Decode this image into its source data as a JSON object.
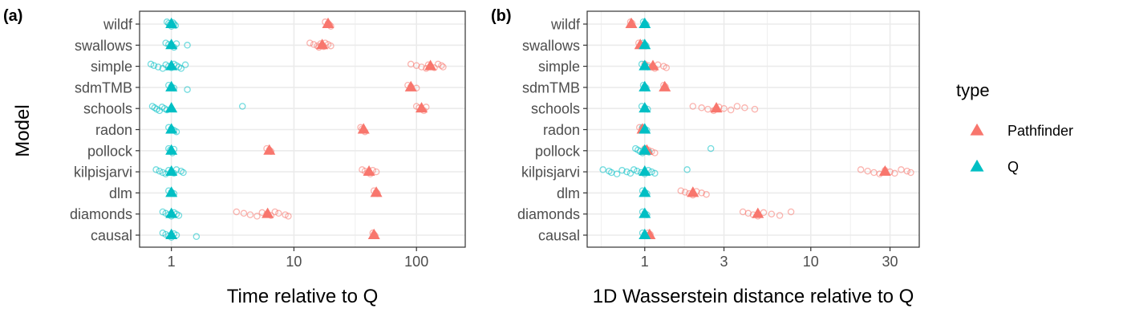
{
  "colors": {
    "Pathfinder": "#F8766D",
    "Q": "#00BFC4",
    "grid": "#ebebeb",
    "border": "#333333",
    "tick": "#4d4d4d"
  },
  "y_axis_title": "Model",
  "legend": {
    "title": "type",
    "entries": [
      "Pathfinder",
      "Q"
    ]
  },
  "chart_data": [
    {
      "type": "scatter",
      "panel_label": "(a)",
      "xlabel": "Time relative to Q",
      "ylabel": "Model",
      "x_scale": "log10",
      "xlim": [
        0.55,
        250
      ],
      "xticks": [
        1,
        10,
        100
      ],
      "xtick_labels": [
        "1",
        "10",
        "100"
      ],
      "xminor": [
        3.162,
        31.62
      ],
      "categories": [
        "wildf",
        "swallows",
        "simple",
        "sdmTMB",
        "schools",
        "radon",
        "pollock",
        "kilpisjarvi",
        "dlm",
        "diamonds",
        "causal"
      ],
      "series": [
        {
          "name": "Pathfinder",
          "means": [
            19,
            17,
            130,
            90,
            110,
            37,
            6.3,
            41,
            47,
            6.1,
            45
          ],
          "runs": [
            [
              18,
              19,
              19.5,
              20
            ],
            [
              13.5,
              14.5,
              15.5,
              16,
              16.5,
              17,
              17.5,
              18,
              19,
              20
            ],
            [
              90,
              100,
              110,
              120,
              125,
              130,
              140,
              150,
              160,
              165
            ],
            [
              85,
              90,
              100
            ],
            [
              100,
              105,
              110,
              115,
              120
            ],
            [
              35,
              36,
              37,
              38
            ],
            [
              6,
              6.3,
              6.5
            ],
            [
              36,
              38,
              40,
              42,
              44,
              47
            ],
            [
              45,
              47,
              48
            ],
            [
              3.4,
              3.9,
              4.4,
              5,
              5.5,
              6,
              6.5,
              7,
              7.5,
              8.5,
              9
            ],
            [
              44,
              45,
              46
            ]
          ]
        },
        {
          "name": "Q",
          "means": [
            1,
            1,
            1,
            1,
            1,
            1,
            1,
            1,
            1,
            1,
            1
          ],
          "runs": [
            [
              0.92,
              0.95,
              0.97,
              1.0,
              1.03,
              1.05,
              1.08
            ],
            [
              0.9,
              0.95,
              1.0,
              1.05,
              1.1,
              1.35
            ],
            [
              0.68,
              0.72,
              0.78,
              0.85,
              0.9,
              0.95,
              1.0,
              1.05,
              1.1,
              1.15,
              1.2,
              1.3
            ],
            [
              0.95,
              1.0,
              1.05,
              1.35
            ],
            [
              0.7,
              0.73,
              0.76,
              0.8,
              0.84,
              0.88,
              0.92,
              3.8
            ],
            [
              0.95,
              1.0,
              1.05,
              1.1
            ],
            [
              0.95,
              0.98,
              1.0,
              1.02,
              1.05
            ],
            [
              0.75,
              0.8,
              0.85,
              0.9,
              0.95,
              1.0,
              1.05,
              1.1,
              1.2,
              1.25
            ],
            [
              0.95,
              1.0,
              1.05
            ],
            [
              0.85,
              0.9,
              0.95,
              1.0,
              1.05,
              1.1,
              1.15
            ],
            [
              0.85,
              0.9,
              0.95,
              1.0,
              1.05,
              1.1,
              1.6
            ]
          ]
        }
      ]
    },
    {
      "type": "scatter",
      "panel_label": "(b)",
      "xlabel": "1D Wasserstein distance relative to Q",
      "ylabel": "Model",
      "x_scale": "log10",
      "xlim": [
        0.45,
        45
      ],
      "xticks": [
        1,
        3,
        10,
        30
      ],
      "xtick_labels": [
        "1",
        "3",
        "10",
        "30"
      ],
      "xminor": [
        0.5477,
        1.732,
        5.477,
        17.32
      ],
      "categories": [
        "wildf",
        "swallows",
        "simple",
        "sdmTMB",
        "schools",
        "radon",
        "pollock",
        "kilpisjarvi",
        "dlm",
        "diamonds",
        "causal"
      ],
      "series": [
        {
          "name": "Pathfinder",
          "means": [
            0.83,
            0.94,
            1.12,
            1.32,
            2.7,
            0.97,
            1.03,
            28,
            1.95,
            4.8,
            1.07
          ],
          "runs": [
            [
              0.82,
              0.84
            ],
            [
              0.92,
              0.95
            ],
            [
              1.0,
              1.05,
              1.1,
              1.15,
              1.2,
              1.3,
              1.35
            ],
            [
              1.3,
              1.33
            ],
            [
              1.95,
              2.2,
              2.4,
              2.6,
              2.8,
              3.0,
              3.3,
              3.6,
              4.0,
              4.6
            ],
            [
              0.93,
              0.96,
              0.98
            ],
            [
              1.0,
              1.05,
              1.1,
              1.15
            ],
            [
              20,
              22,
              24,
              26,
              28,
              30,
              32,
              35,
              38,
              40
            ],
            [
              1.65,
              1.75,
              1.85,
              1.95,
              2.05,
              2.2,
              2.35
            ],
            [
              3.9,
              4.2,
              4.5,
              4.8,
              5.2,
              5.8,
              6.5,
              7.6
            ],
            [
              1.05,
              1.08
            ]
          ]
        },
        {
          "name": "Q",
          "means": [
            1,
            1,
            1,
            1,
            1,
            1,
            1,
            1,
            1,
            1,
            1
          ],
          "runs": [
            [
              0.98,
              1.0,
              1.02
            ],
            [
              0.98,
              1.0,
              1.02
            ],
            [
              0.96,
              1.0,
              1.04
            ],
            [
              0.98,
              1.0,
              1.02
            ],
            [
              0.96,
              1.0,
              1.04
            ],
            [
              0.97,
              1.0,
              1.03
            ],
            [
              0.88,
              0.91,
              0.94,
              0.97,
              1.0,
              1.03,
              1.06,
              2.5
            ],
            [
              0.56,
              0.61,
              0.63,
              0.68,
              0.73,
              0.78,
              0.82,
              0.86,
              0.9,
              0.95,
              1.0,
              1.05,
              1.1,
              1.15,
              1.8
            ],
            [
              0.97,
              1.0,
              1.03
            ],
            [
              0.97,
              1.0,
              1.03
            ],
            [
              0.97,
              1.0,
              1.03
            ]
          ]
        }
      ]
    }
  ]
}
